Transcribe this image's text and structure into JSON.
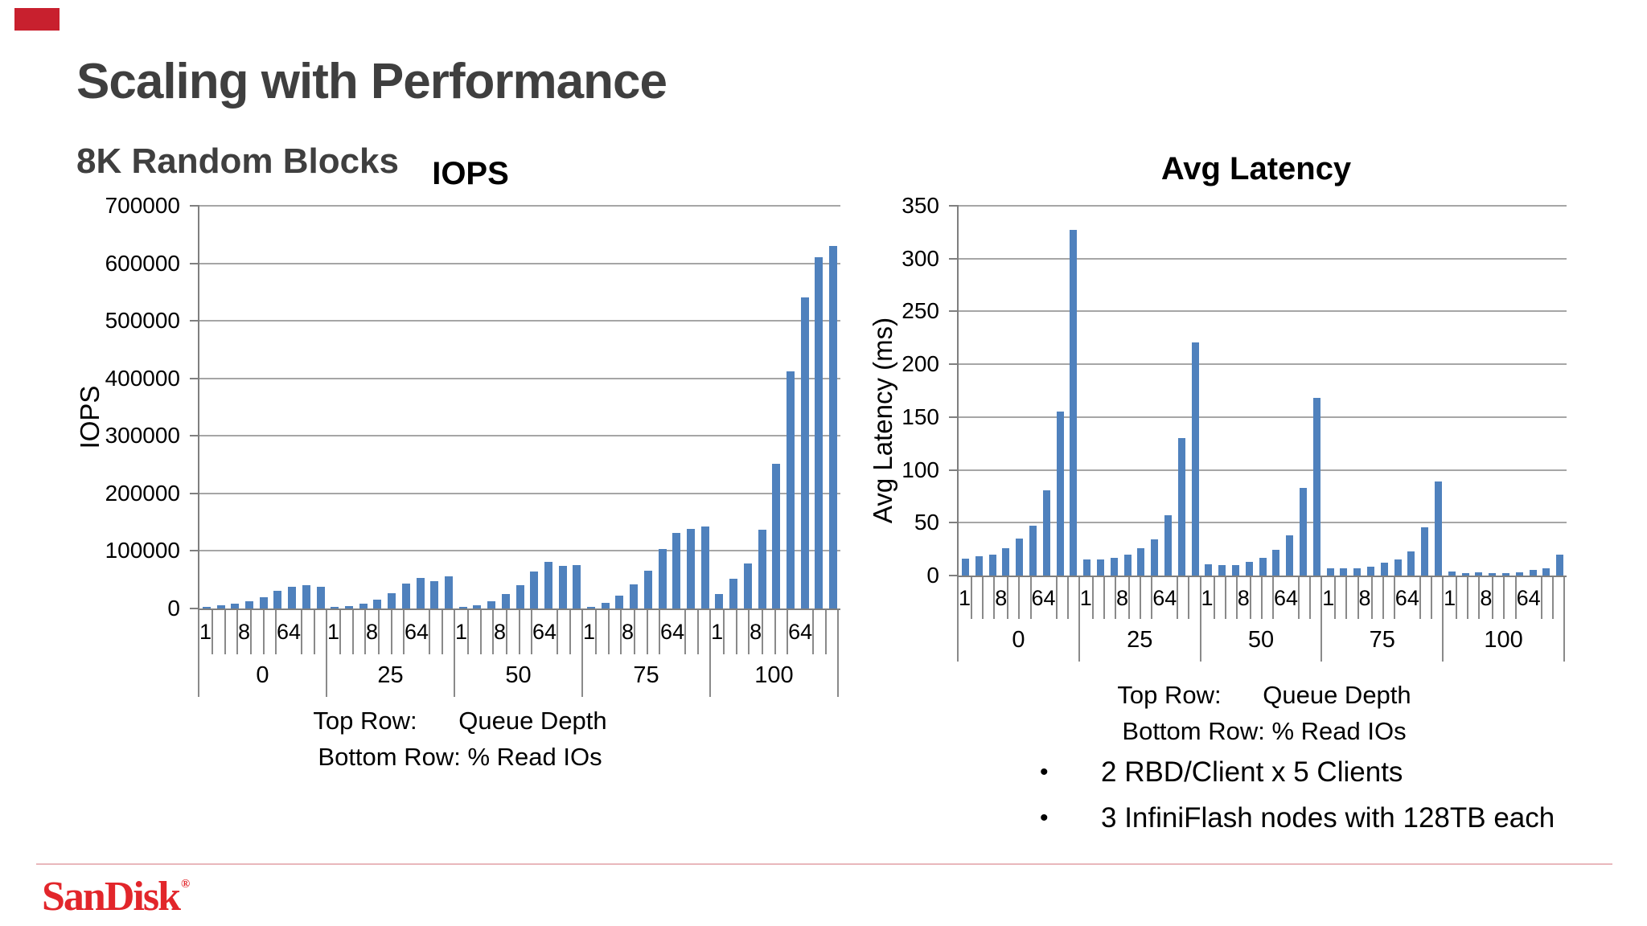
{
  "slide": {
    "title": "Scaling with Performance",
    "subtitle": "8K Random Blocks"
  },
  "colors": {
    "bar": "#4f81bd",
    "gridline": "#a6a6a6",
    "axis": "#7f7f7f",
    "title_gray": "#3f3f3f",
    "brand_red": "#e2262b",
    "accent_red": "#c8202e",
    "footer_line_pink": "#e9b7bc"
  },
  "chart_data": [
    {
      "type": "bar",
      "title": "IOPS",
      "y_axis_title": "IOPS",
      "ylim": [
        0,
        700000
      ],
      "ytick_step": 100000,
      "yticks": [
        "0",
        "100000",
        "200000",
        "300000",
        "400000",
        "500000",
        "600000",
        "700000"
      ],
      "grid": true,
      "legend": "none",
      "group_categories": [
        "0",
        "25",
        "50",
        "75",
        "100"
      ],
      "slot_labels": [
        "1",
        "",
        "",
        "8",
        "",
        "",
        "64",
        "",
        ""
      ],
      "x_caption_line1": "Top Row:      Queue Depth",
      "x_caption_line2": "Bottom Row: % Read IOs",
      "values_by_group": [
        [
          2500,
          5500,
          8500,
          13000,
          20000,
          31000,
          37500,
          40000,
          38000
        ],
        [
          2000,
          4500,
          8000,
          15000,
          27000,
          44000,
          53000,
          47000,
          56000
        ],
        [
          2000,
          5000,
          12500,
          25000,
          41000,
          64000,
          81000,
          74500,
          75000
        ],
        [
          3000,
          9500,
          22000,
          42500,
          65000,
          103000,
          132000,
          138000,
          142000
        ],
        [
          25000,
          52000,
          78000,
          137000,
          252000,
          412000,
          541000,
          611000,
          630000
        ]
      ]
    },
    {
      "type": "bar",
      "title": "Avg Latency",
      "y_axis_title": "Avg Latency (ms)",
      "ylim": [
        0,
        350
      ],
      "ytick_step": 50,
      "yticks": [
        "0",
        "50",
        "100",
        "150",
        "200",
        "250",
        "300",
        "350"
      ],
      "grid": true,
      "legend": "none",
      "group_categories": [
        "0",
        "25",
        "50",
        "75",
        "100"
      ],
      "slot_labels": [
        "1",
        "",
        "",
        "8",
        "",
        "",
        "64",
        "",
        ""
      ],
      "x_caption_line1": "Top Row:      Queue Depth",
      "x_caption_line2": "Bottom Row: % Read IOs",
      "values_by_group": [
        [
          16,
          18,
          20,
          26,
          35,
          47,
          81,
          155,
          327
        ],
        [
          15,
          15,
          17,
          20,
          26,
          34,
          57,
          130,
          221
        ],
        [
          11,
          10,
          10,
          13,
          17,
          24,
          38,
          83,
          168
        ],
        [
          7,
          7,
          7,
          8,
          12,
          15,
          23,
          46,
          89
        ],
        [
          3.5,
          2.5,
          3,
          2,
          2.5,
          3,
          5,
          7,
          20
        ]
      ]
    }
  ],
  "notes": {
    "bullet_char": "•",
    "items": [
      "2 RBD/Client x  5 Clients",
      "3 InfiniFlash nodes with 128TB each"
    ]
  },
  "footer": {
    "logo_text": "SanDisk",
    "logo_reg_mark": "®"
  }
}
